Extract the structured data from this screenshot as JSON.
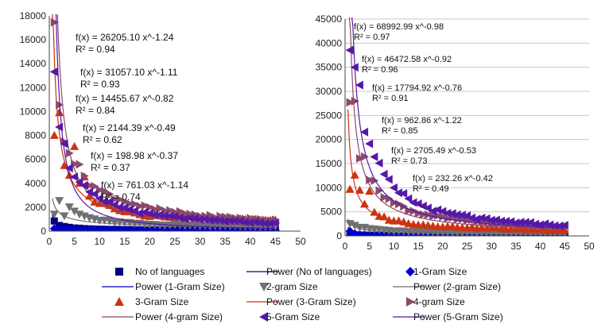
{
  "legend": [
    {
      "label": "No of languages",
      "kind": "marker",
      "marker": "square",
      "color": "#000080"
    },
    {
      "label": "Power (No of languages)",
      "kind": "line",
      "color": "#000080"
    },
    {
      "label": "1-Gram Size",
      "kind": "marker",
      "marker": "diamond",
      "color": "#0000cc"
    },
    {
      "label": "Power (1-Gram Size)",
      "kind": "line",
      "color": "#0000cc"
    },
    {
      "label": "2-gram Size",
      "kind": "marker",
      "marker": "tri-down",
      "color": "#707070"
    },
    {
      "label": "Power (2-gram Size)",
      "kind": "line",
      "color": "#707070"
    },
    {
      "label": "3-Gram Size",
      "kind": "marker",
      "marker": "tri-up",
      "color": "#cc3311"
    },
    {
      "label": "Power (3-Gram Size)",
      "kind": "line",
      "color": "#cc3311"
    },
    {
      "label": "4-gram Size",
      "kind": "marker",
      "marker": "tri-right",
      "color": "#8b4a6b"
    },
    {
      "label": "Power (4-gram Size)",
      "kind": "line",
      "color": "#8b4a6b"
    },
    {
      "label": "5-Gram Size",
      "kind": "marker",
      "marker": "tri-left",
      "color": "#5518a8"
    },
    {
      "label": "Power (5-Gram Size)",
      "kind": "line",
      "color": "#5518a8"
    }
  ],
  "chart_data": [
    {
      "type": "scatter",
      "title": "",
      "xlabel": "",
      "ylabel": "",
      "xlim": [
        0,
        50
      ],
      "ylim": [
        0,
        18000
      ],
      "xticks": [
        0,
        5,
        10,
        15,
        20,
        25,
        30,
        35,
        40,
        45,
        50
      ],
      "yticks": [
        0,
        2000,
        4000,
        6000,
        8000,
        10000,
        12000,
        14000,
        16000,
        18000
      ],
      "x_range": [
        1,
        45
      ],
      "grid": false,
      "series": [
        {
          "name": "5-Gram Size",
          "a": 26205.1,
          "b": -1.24,
          "anchors": [
            [
              1,
              14000
            ],
            [
              2,
              9200
            ],
            [
              3,
              7000
            ],
            [
              4,
              5500
            ],
            [
              6,
              4000
            ],
            [
              8,
              3200
            ],
            [
              10,
              2600
            ],
            [
              15,
              1900
            ],
            [
              20,
              1400
            ],
            [
              30,
              950
            ],
            [
              45,
              650
            ]
          ]
        },
        {
          "name": "4-gram Size",
          "a": 31057.1,
          "b": -1.11,
          "anchors": [
            [
              1,
              16700
            ],
            [
              2,
              10500
            ],
            [
              3,
              8000
            ],
            [
              5,
              5800
            ],
            [
              8,
              4100
            ],
            [
              10,
              3400
            ],
            [
              15,
              2500
            ],
            [
              20,
              1900
            ],
            [
              30,
              1300
            ],
            [
              45,
              900
            ]
          ]
        },
        {
          "name": "3-Gram Size",
          "a": 14455.67,
          "b": -0.82,
          "anchors": [
            [
              1,
              8100
            ],
            [
              2,
              10200
            ],
            [
              3,
              5200
            ],
            [
              4,
              4600
            ],
            [
              5,
              6700
            ],
            [
              6,
              3900
            ],
            [
              7,
              4800
            ],
            [
              8,
              2800
            ],
            [
              10,
              2400
            ],
            [
              15,
              1700
            ],
            [
              20,
              1300
            ],
            [
              25,
              1200
            ],
            [
              30,
              1100
            ],
            [
              35,
              1050
            ],
            [
              40,
              1000
            ],
            [
              45,
              950
            ]
          ]
        },
        {
          "name": "2-gram Size",
          "a": 2144.39,
          "b": -0.49,
          "anchors": [
            [
              1,
              1500
            ],
            [
              2,
              2600
            ],
            [
              3,
              1300
            ],
            [
              4,
              1900
            ],
            [
              6,
              1400
            ],
            [
              8,
              1100
            ],
            [
              10,
              900
            ],
            [
              15,
              700
            ],
            [
              20,
              560
            ],
            [
              30,
              460
            ],
            [
              45,
              380
            ]
          ]
        },
        {
          "name": "1-Gram Size",
          "a": 198.98,
          "b": -0.37,
          "anchors": [
            [
              1,
              200
            ],
            [
              5,
              150
            ],
            [
              10,
              110
            ],
            [
              20,
              90
            ],
            [
              30,
              75
            ],
            [
              45,
              60
            ]
          ]
        },
        {
          "name": "No of languages",
          "a": 761.03,
          "b": -1.14,
          "anchors": [
            [
              1,
              800
            ],
            [
              2,
              500
            ],
            [
              3,
              380
            ],
            [
              5,
              260
            ],
            [
              10,
              150
            ],
            [
              20,
              90
            ],
            [
              45,
              60
            ]
          ]
        }
      ],
      "equations": [
        {
          "text": "f(x) = 26205.10 x^-1.24",
          "r2": "R² = 0.94"
        },
        {
          "text": "f(x) = 31057.10 x^-1.11",
          "r2": "R² = 0.93"
        },
        {
          "text": "f(x) = 14455.67 x^-0.82",
          "r2": "R² = 0.84"
        },
        {
          "text": "f(x) = 2144.39 x^-0.49",
          "r2": "R² = 0.62"
        },
        {
          "text": "f(x) = 198.98 x^-0.37",
          "r2": "R² = 0.37"
        },
        {
          "text": "f(x) = 761.03 x^-1.14",
          "r2": "R² = 0.74"
        }
      ]
    },
    {
      "type": "scatter",
      "title": "",
      "xlabel": "",
      "ylabel": "",
      "xlim": [
        0,
        50
      ],
      "ylim": [
        0,
        45000
      ],
      "xticks": [
        0,
        5,
        10,
        15,
        20,
        25,
        30,
        35,
        40,
        45,
        50
      ],
      "yticks": [
        0,
        5000,
        10000,
        15000,
        20000,
        25000,
        30000,
        35000,
        40000,
        45000
      ],
      "x_range": [
        1,
        45
      ],
      "grid": true,
      "series": [
        {
          "name": "5-Gram Size",
          "a": 68992.99,
          "b": -0.98,
          "anchors": [
            [
              1,
              40500
            ],
            [
              2,
              37000
            ],
            [
              3,
              30000
            ],
            [
              4,
              22500
            ],
            [
              5,
              20000
            ],
            [
              6,
              16000
            ],
            [
              8,
              12500
            ],
            [
              10,
              9500
            ],
            [
              15,
              6500
            ],
            [
              20,
              4800
            ],
            [
              30,
              3200
            ],
            [
              45,
              2100
            ]
          ]
        },
        {
          "name": "4-gram Size",
          "a": 46472.58,
          "b": -0.92,
          "anchors": [
            [
              1,
              26500
            ],
            [
              2,
              27800
            ],
            [
              3,
              17200
            ],
            [
              4,
              17400
            ],
            [
              5,
              12000
            ],
            [
              7,
              9500
            ],
            [
              10,
              6800
            ],
            [
              15,
              4800
            ],
            [
              20,
              3800
            ],
            [
              30,
              2700
            ],
            [
              45,
              1900
            ]
          ]
        },
        {
          "name": "3-Gram Size",
          "a": 17794.92,
          "b": -0.76,
          "anchors": [
            [
              1,
              9800
            ],
            [
              2,
              13000
            ],
            [
              3,
              9000
            ],
            [
              4,
              6500
            ],
            [
              5,
              8800
            ],
            [
              6,
              4800
            ],
            [
              8,
              3800
            ],
            [
              10,
              3200
            ],
            [
              15,
              2400
            ],
            [
              20,
              2000
            ],
            [
              30,
              1600
            ],
            [
              45,
              1200
            ]
          ]
        },
        {
          "name": "2-gram Size",
          "a": 2705.49,
          "b": -0.53,
          "anchors": [
            [
              1,
              2700
            ],
            [
              2,
              2200
            ],
            [
              3,
              1800
            ],
            [
              5,
              1500
            ],
            [
              10,
              1000
            ],
            [
              20,
              700
            ],
            [
              30,
              580
            ],
            [
              45,
              460
            ]
          ]
        },
        {
          "name": "1-Gram Size",
          "a": 962.86,
          "b": -1.22,
          "anchors": [
            [
              1,
              950
            ],
            [
              2,
              450
            ],
            [
              3,
              300
            ],
            [
              5,
              150
            ],
            [
              10,
              80
            ],
            [
              20,
              40
            ],
            [
              45,
              20
            ]
          ]
        },
        {
          "name": "No of languages",
          "a": 232.26,
          "b": -0.42,
          "anchors": [
            [
              1,
              230
            ],
            [
              5,
              120
            ],
            [
              10,
              90
            ],
            [
              20,
              65
            ],
            [
              30,
              55
            ],
            [
              45,
              45
            ]
          ]
        }
      ],
      "equations": [
        {
          "text": "f(x) = 68992.99 x^-0.98",
          "r2": "R² = 0.97"
        },
        {
          "text": "f(x) = 46472.58 x^-0.92",
          "r2": "R² = 0.96"
        },
        {
          "text": "f(x) = 17794.92 x^-0.76",
          "r2": "R² = 0.91"
        },
        {
          "text": "f(x) = 962.86 x^-1.22",
          "r2": "R² = 0.85"
        },
        {
          "text": "f(x) = 2705.49 x^-0.53",
          "r2": "R² = 0.73"
        },
        {
          "text": "f(x) = 232.26 x^-0.42",
          "r2": "R² = 0.49"
        }
      ]
    }
  ]
}
